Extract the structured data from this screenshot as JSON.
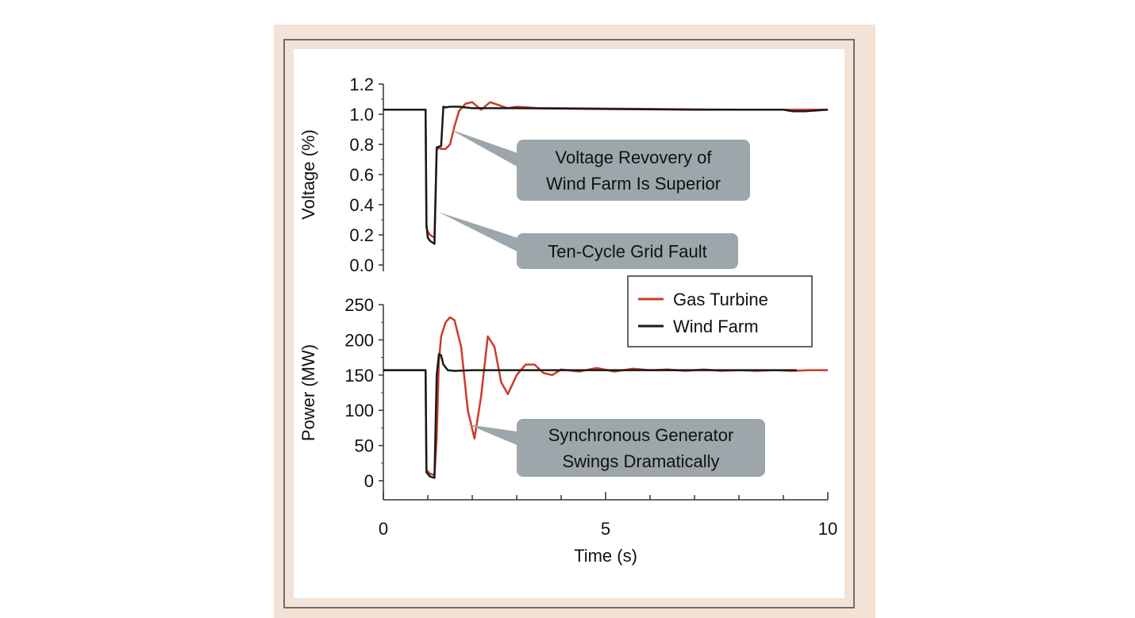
{
  "colors": {
    "frame_background": "#f3e2d6",
    "plot_background": "#ffffff",
    "gas_turbine": "#cc3b2a",
    "wind_farm": "#1a1a1a",
    "callout_fill": "#9ca6ab"
  },
  "chart_data": [
    {
      "type": "line",
      "title": "",
      "xlabel": "",
      "ylabel": "Voltage (%)",
      "xlim": [
        0,
        10
      ],
      "ylim": [
        0,
        1.2
      ],
      "yticks": [
        "0.0",
        "0.2",
        "0.4",
        "0.6",
        "0.8",
        "1.0",
        "1.2"
      ],
      "grid": false,
      "series": [
        {
          "name": "Gas Turbine",
          "color": "#cc3b2a",
          "x": [
            0,
            0.95,
            0.97,
            1.0,
            1.05,
            1.1,
            1.15,
            1.2,
            1.25,
            1.3,
            1.4,
            1.5,
            1.6,
            1.7,
            1.85,
            2.0,
            2.2,
            2.4,
            2.6,
            2.8,
            3.0,
            3.5,
            4.0,
            6.0,
            8.0,
            10.0
          ],
          "y": [
            1.03,
            1.03,
            0.25,
            0.22,
            0.2,
            0.19,
            0.18,
            0.76,
            0.78,
            0.77,
            0.77,
            0.8,
            0.92,
            1.02,
            1.07,
            1.08,
            1.03,
            1.08,
            1.06,
            1.04,
            1.05,
            1.04,
            1.04,
            1.035,
            1.03,
            1.03
          ]
        },
        {
          "name": "Wind Farm",
          "color": "#1a1a1a",
          "x": [
            0,
            0.95,
            0.97,
            1.0,
            1.05,
            1.1,
            1.15,
            1.2,
            1.3,
            1.35,
            1.4,
            1.5,
            1.7,
            2.0,
            3.0,
            5.0,
            7.0,
            9.0,
            9.2,
            9.5,
            10.0
          ],
          "y": [
            1.03,
            1.03,
            0.27,
            0.18,
            0.16,
            0.15,
            0.14,
            0.78,
            0.79,
            1.05,
            1.045,
            1.05,
            1.05,
            1.04,
            1.04,
            1.035,
            1.03,
            1.03,
            1.02,
            1.02,
            1.03
          ]
        }
      ],
      "annotations": [
        {
          "text_lines": [
            "Voltage Revovery of",
            "Wind Farm Is Superior"
          ],
          "target": [
            1.5,
            0.9
          ]
        },
        {
          "text_lines": [
            "Ten-Cycle Grid Fault"
          ],
          "target": [
            1.25,
            0.35
          ]
        }
      ]
    },
    {
      "type": "line",
      "title": "",
      "xlabel": "Time (s)",
      "ylabel": "Power (MW)",
      "xlim": [
        0,
        10
      ],
      "ylim": [
        0,
        250
      ],
      "xticks": [
        "0",
        "5",
        "10"
      ],
      "yticks": [
        "0",
        "50",
        "100",
        "150",
        "200",
        "250"
      ],
      "grid": false,
      "legend": {
        "placement": "top-right",
        "entries": [
          "Gas Turbine",
          "Wind Farm"
        ]
      },
      "series": [
        {
          "name": "Gas Turbine",
          "color": "#cc3b2a",
          "x": [
            0,
            0.95,
            0.97,
            1.05,
            1.15,
            1.2,
            1.25,
            1.3,
            1.4,
            1.5,
            1.6,
            1.75,
            1.9,
            2.05,
            2.2,
            2.35,
            2.5,
            2.65,
            2.8,
            3.0,
            3.2,
            3.4,
            3.6,
            3.8,
            4.0,
            4.4,
            4.8,
            5.2,
            5.6,
            6.0,
            6.4,
            6.8,
            7.2,
            7.6,
            8.0,
            8.4,
            8.8,
            9.2,
            9.6,
            10.0
          ],
          "y": [
            157,
            157,
            15,
            10,
            8,
            60,
            170,
            205,
            225,
            232,
            228,
            190,
            100,
            60,
            120,
            205,
            190,
            140,
            123,
            150,
            165,
            165,
            153,
            150,
            158,
            155,
            160,
            155,
            159,
            157,
            158,
            156,
            158,
            156,
            157,
            156,
            157,
            156,
            157,
            157
          ]
        },
        {
          "name": "Wind Farm",
          "color": "#1a1a1a",
          "x": [
            0,
            0.95,
            0.97,
            1.05,
            1.15,
            1.2,
            1.25,
            1.3,
            1.35,
            1.45,
            1.6,
            2.0,
            3.0,
            5.0,
            7.0,
            9.0,
            9.3
          ],
          "y": [
            157,
            157,
            12,
            6,
            4,
            150,
            180,
            178,
            165,
            157,
            156,
            157,
            157,
            157,
            157,
            157,
            157
          ]
        }
      ],
      "annotations": [
        {
          "text_lines": [
            "Synchronous Generator",
            "Swings Dramatically"
          ],
          "target": [
            1.9,
            80
          ]
        }
      ]
    }
  ]
}
